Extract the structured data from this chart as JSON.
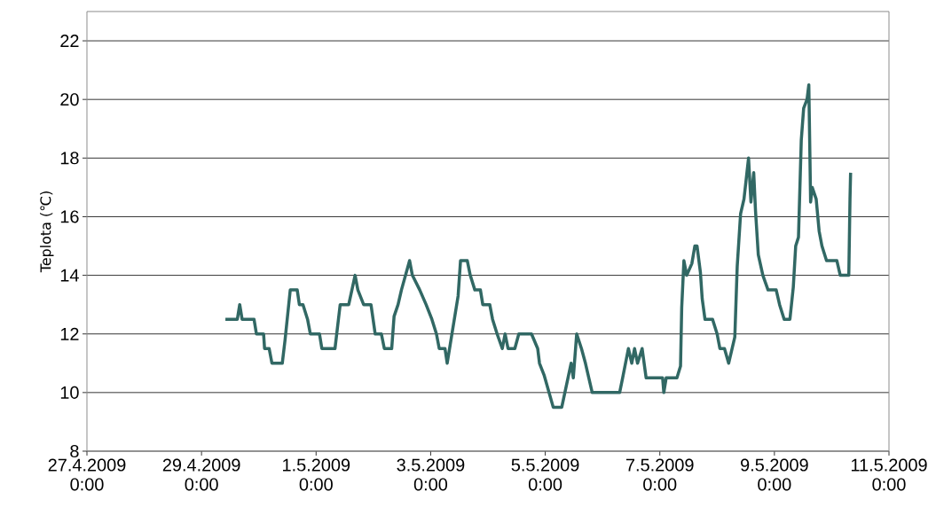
{
  "chart_data": {
    "type": "line",
    "ylabel": "Teplota (℃)",
    "color": "#316864",
    "grid": "y",
    "marker": "none",
    "line_style": "solid",
    "xlim": [
      "2009-04-27",
      "2009-05-11"
    ],
    "xticks": [
      {
        "value": "2009-04-27",
        "label": "27.4.2009 0:00"
      },
      {
        "value": "2009-04-29",
        "label": "29.4.2009 0:00"
      },
      {
        "value": "2009-05-01",
        "label": "1.5.2009 0:00"
      },
      {
        "value": "2009-05-03",
        "label": "3.5.2009 0:00"
      },
      {
        "value": "2009-05-05",
        "label": "5.5.2009 0:00"
      },
      {
        "value": "2009-05-07",
        "label": "7.5.2009 0:00"
      },
      {
        "value": "2009-05-09",
        "label": "9.5.2009 0:00"
      },
      {
        "value": "2009-05-11",
        "label": "11.5.2009 0:00"
      }
    ],
    "ylim": [
      8,
      23
    ],
    "yticks": [
      8,
      10,
      12,
      14,
      16,
      18,
      20,
      22
    ],
    "x": [
      "2009-04-29T10:00",
      "2009-04-29T15:00",
      "2009-04-29T16:00",
      "2009-04-29T17:00",
      "2009-04-29T22:00",
      "2009-04-29T23:00",
      "2009-04-30T02:00",
      "2009-04-30T02:25",
      "2009-04-30T04:20",
      "2009-04-30T05:30",
      "2009-04-30T09:50",
      "2009-04-30T11:00",
      "2009-04-30T13:10",
      "2009-04-30T16:05",
      "2009-04-30T17:00",
      "2009-04-30T18:30",
      "2009-04-30T20:25",
      "2009-04-30T21:35",
      "2009-05-01T01:25",
      "2009-05-01T02:25",
      "2009-05-01T07:55",
      "2009-05-01T10:05",
      "2009-05-01T13:40",
      "2009-05-01T16:20",
      "2009-05-01T17:30",
      "2009-05-01T19:55",
      "2009-05-01T23:00",
      "2009-05-02T00:45",
      "2009-05-02T03:20",
      "2009-05-02T04:35",
      "2009-05-02T07:40",
      "2009-05-02T08:40",
      "2009-05-02T10:20",
      "2009-05-02T11:45",
      "2009-05-02T15:10",
      "2009-05-02T16:20",
      "2009-05-02T19:25",
      "2009-05-02T22:05",
      "2009-05-03T00:30",
      "2009-05-03T02:25",
      "2009-05-03T03:35",
      "2009-05-03T06:00",
      "2009-05-03T06:55",
      "2009-05-03T11:30",
      "2009-05-03T12:30",
      "2009-05-03T15:20",
      "2009-05-03T16:35",
      "2009-05-03T18:30",
      "2009-05-03T20:50",
      "2009-05-03T21:50",
      "2009-05-04T00:45",
      "2009-05-04T01:55",
      "2009-05-04T03:50",
      "2009-05-04T06:00",
      "2009-05-04T07:10",
      "2009-05-04T08:25",
      "2009-05-04T11:15",
      "2009-05-04T12:55",
      "2009-05-04T18:15",
      "2009-05-04T20:50",
      "2009-05-04T21:35",
      "2009-05-04T23:30",
      "2009-05-05T03:20",
      "2009-05-05T06:55",
      "2009-05-05T10:50",
      "2009-05-05T11:45",
      "2009-05-05T13:10",
      "2009-05-05T15:10",
      "2009-05-05T16:50",
      "2009-05-05T18:15",
      "2009-05-05T19:40",
      "2009-05-06T07:10",
      "2009-05-06T08:25",
      "2009-05-06T10:50",
      "2009-05-06T12:15",
      "2009-05-06T13:25",
      "2009-05-06T14:40",
      "2009-05-06T16:35",
      "2009-05-06T18:15",
      "2009-05-07T01:10",
      "2009-05-07T01:40",
      "2009-05-07T02:40",
      "2009-05-07T07:10",
      "2009-05-07T08:40",
      "2009-05-07T09:10",
      "2009-05-07T10:05",
      "2009-05-07T11:15",
      "2009-05-07T13:25",
      "2009-05-07T14:40",
      "2009-05-07T15:35",
      "2009-05-07T17:00",
      "2009-05-07T17:45",
      "2009-05-07T18:55",
      "2009-05-07T22:05",
      "2009-05-08T00:00",
      "2009-05-08T01:10",
      "2009-05-08T03:05",
      "2009-05-08T04:50",
      "2009-05-08T07:25",
      "2009-05-08T08:25",
      "2009-05-08T09:50",
      "2009-05-08T11:15",
      "2009-05-08T13:10",
      "2009-05-08T14:10",
      "2009-05-08T15:20",
      "2009-05-08T16:05",
      "2009-05-08T17:15",
      "2009-05-08T19:10",
      "2009-05-08T21:20",
      "2009-05-09T00:45",
      "2009-05-09T02:10",
      "2009-05-09T04:05",
      "2009-05-09T06:30",
      "2009-05-09T07:55",
      "2009-05-09T08:55",
      "2009-05-09T10:05",
      "2009-05-09T11:15",
      "2009-05-09T12:15",
      "2009-05-09T13:40",
      "2009-05-09T14:25",
      "2009-05-09T15:10",
      "2009-05-09T15:50",
      "2009-05-09T17:30",
      "2009-05-09T18:45",
      "2009-05-09T19:55",
      "2009-05-09T21:50",
      "2009-05-10T02:10",
      "2009-05-10T03:35",
      "2009-05-10T07:10",
      "2009-05-10T07:40",
      "2009-05-10T07:55"
    ],
    "values": [
      12.5,
      12.5,
      13.0,
      12.5,
      12.5,
      12.0,
      12.0,
      11.5,
      11.5,
      11.0,
      11.0,
      11.8,
      13.5,
      13.5,
      13.0,
      13.0,
      12.5,
      12.0,
      12.0,
      11.5,
      11.5,
      13.0,
      13.0,
      14.0,
      13.5,
      13.0,
      13.0,
      12.0,
      12.0,
      11.5,
      11.5,
      12.6,
      13.0,
      13.5,
      14.5,
      14.0,
      13.5,
      13.0,
      12.5,
      12.0,
      11.5,
      11.5,
      11.0,
      13.3,
      14.5,
      14.5,
      14.0,
      13.5,
      13.5,
      13.0,
      13.0,
      12.5,
      12.0,
      11.5,
      12.0,
      11.5,
      11.5,
      12.0,
      12.0,
      11.5,
      11.0,
      10.6,
      9.5,
      9.5,
      11.0,
      10.5,
      12.0,
      11.5,
      11.0,
      10.5,
      10.0,
      10.0,
      10.5,
      11.5,
      11.0,
      11.5,
      11.0,
      11.5,
      10.5,
      10.5,
      10.0,
      10.5,
      10.5,
      10.9,
      12.9,
      14.5,
      14.0,
      14.4,
      15.0,
      15.0,
      14.1,
      13.2,
      12.5,
      12.5,
      12.0,
      11.5,
      11.5,
      11.0,
      11.9,
      14.3,
      16.1,
      16.6,
      18.0,
      16.5,
      17.5,
      16.2,
      14.7,
      14.0,
      13.5,
      13.5,
      13.0,
      12.5,
      12.5,
      13.6,
      15.0,
      15.3,
      18.6,
      19.7,
      20.0,
      20.5,
      16.5,
      17.0,
      16.6,
      15.5,
      15.0,
      14.5,
      14.5,
      14.0,
      14.0,
      16.6,
      17.5
    ]
  }
}
